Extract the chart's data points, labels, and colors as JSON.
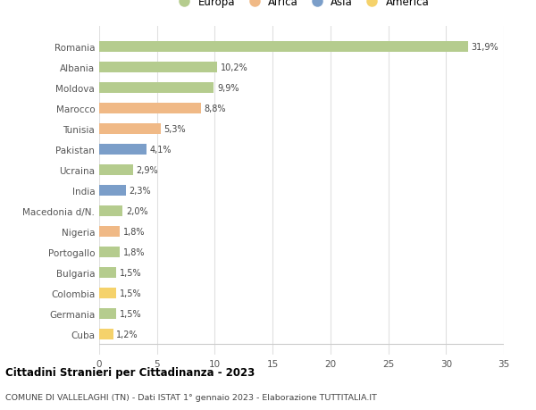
{
  "countries": [
    "Romania",
    "Albania",
    "Moldova",
    "Marocco",
    "Tunisia",
    "Pakistan",
    "Ucraina",
    "India",
    "Macedonia d/N.",
    "Nigeria",
    "Portogallo",
    "Bulgaria",
    "Colombia",
    "Germania",
    "Cuba"
  ],
  "values": [
    31.9,
    10.2,
    9.9,
    8.8,
    5.3,
    4.1,
    2.9,
    2.3,
    2.0,
    1.8,
    1.8,
    1.5,
    1.5,
    1.5,
    1.2
  ],
  "continents": [
    "Europa",
    "Europa",
    "Europa",
    "Africa",
    "Africa",
    "Asia",
    "Europa",
    "Asia",
    "Europa",
    "Africa",
    "Europa",
    "Europa",
    "America",
    "Europa",
    "America"
  ],
  "colors": {
    "Europa": "#b5cc8e",
    "Africa": "#f0b986",
    "Asia": "#7b9ec9",
    "America": "#f5d26b"
  },
  "legend_order": [
    "Europa",
    "Africa",
    "Asia",
    "America"
  ],
  "title1": "Cittadini Stranieri per Cittadinanza - 2023",
  "title2": "COMUNE DI VALLELAGHI (TN) - Dati ISTAT 1° gennaio 2023 - Elaborazione TUTTITALIA.IT",
  "xlim": [
    0,
    35
  ],
  "xticks": [
    0,
    5,
    10,
    15,
    20,
    25,
    30,
    35
  ],
  "background_color": "#ffffff",
  "grid_color": "#e0e0e0",
  "bar_height": 0.55
}
